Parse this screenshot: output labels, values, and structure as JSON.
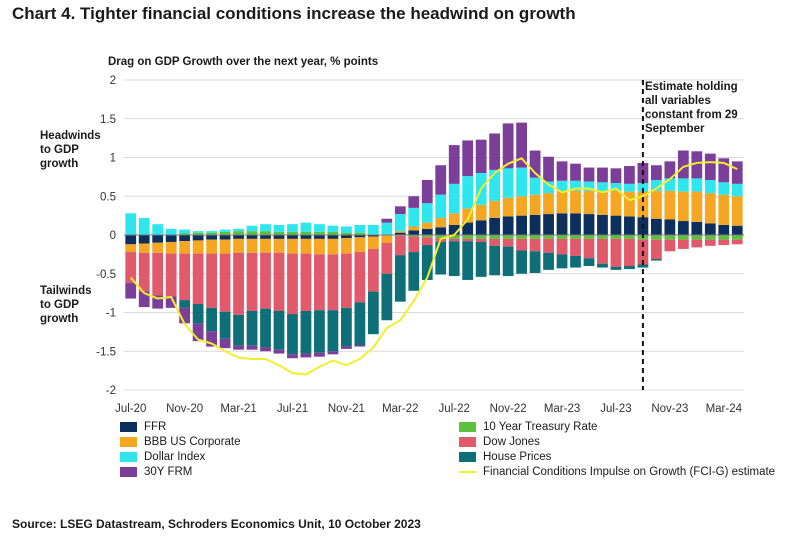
{
  "title": "Chart 4. Tighter financial conditions increase the headwind on growth",
  "subtitle": "Drag on GDP Growth over the next year, % points",
  "headwinds_label": "Headwinds\nto GDP\ngrowth",
  "tailwinds_label": "Tailwinds\nto GDP\ngrowth",
  "annotation": "Estimate holding\nall variables\nconstant from 29\nSeptember",
  "source": "Source: LSEG Datastream, Schroders Economics Unit, 10 October 2023",
  "colors": {
    "ffr": "#0d2f5e",
    "treasury": "#5cc13c",
    "bbb": "#f5a623",
    "dow": "#e05a6c",
    "dollar": "#2fe6ef",
    "house": "#0f6f78",
    "frm": "#7b3f9a",
    "fcig": "#f2ee2c"
  },
  "legend": [
    {
      "key": "ffr",
      "label": "FFR",
      "kind": "box"
    },
    {
      "key": "treasury",
      "label": "10 Year Treasury Rate",
      "kind": "box"
    },
    {
      "key": "bbb",
      "label": "BBB US Corporate",
      "kind": "box"
    },
    {
      "key": "dow",
      "label": "Dow Jones",
      "kind": "box"
    },
    {
      "key": "dollar",
      "label": "Dollar Index",
      "kind": "box"
    },
    {
      "key": "house",
      "label": "House Prices",
      "kind": "box"
    },
    {
      "key": "frm",
      "label": "30Y FRM",
      "kind": "box"
    },
    {
      "key": "fcig",
      "label": "Financial Conditions Impulse on Growth (FCI-G) estimate",
      "kind": "line"
    }
  ],
  "chart_data": {
    "type": "bar",
    "stacked": true,
    "title": "Chart 4. Tighter financial conditions increase the headwind on growth",
    "ylabel": "Drag on GDP Growth over the next year, % points",
    "ylim": [
      -2,
      2
    ],
    "yticks": [
      -2,
      -1.5,
      -1,
      -0.5,
      0,
      0.5,
      1,
      1.5,
      2
    ],
    "ytick_labels": [
      "-2",
      "-1.5",
      "-1",
      "-0.5",
      "0",
      "0.5",
      "1",
      "1.5",
      "2"
    ],
    "xtick_labels": [
      {
        "index": 0,
        "label": "Jul-20"
      },
      {
        "index": 4,
        "label": "Nov-20"
      },
      {
        "index": 8,
        "label": "Mar-21"
      },
      {
        "index": 12,
        "label": "Jul-21"
      },
      {
        "index": 16,
        "label": "Nov-21"
      },
      {
        "index": 20,
        "label": "Mar-22"
      },
      {
        "index": 24,
        "label": "Jul-22"
      },
      {
        "index": 28,
        "label": "Nov-22"
      },
      {
        "index": 32,
        "label": "Mar-23"
      },
      {
        "index": 36,
        "label": "Jul-23"
      },
      {
        "index": 40,
        "label": "Nov-23"
      },
      {
        "index": 44,
        "label": "Mar-24"
      }
    ],
    "estimate_start_index": 38.5,
    "categories": [
      "Jul-20",
      "Aug-20",
      "Sep-20",
      "Oct-20",
      "Nov-20",
      "Dec-20",
      "Jan-21",
      "Feb-21",
      "Mar-21",
      "Apr-21",
      "May-21",
      "Jun-21",
      "Jul-21",
      "Aug-21",
      "Sep-21",
      "Oct-21",
      "Nov-21",
      "Dec-21",
      "Jan-22",
      "Feb-22",
      "Mar-22",
      "Apr-22",
      "May-22",
      "Jun-22",
      "Jul-22",
      "Aug-22",
      "Sep-22",
      "Oct-22",
      "Nov-22",
      "Dec-22",
      "Jan-23",
      "Feb-23",
      "Mar-23",
      "Apr-23",
      "May-23",
      "Jun-23",
      "Jul-23",
      "Aug-23",
      "Sep-23",
      "Oct-23",
      "Nov-23",
      "Dec-23",
      "Jan-24",
      "Feb-24",
      "Mar-24",
      "Apr-24"
    ],
    "series": [
      {
        "key": "ffr",
        "name": "FFR",
        "values": [
          -0.12,
          -0.11,
          -0.1,
          -0.09,
          -0.08,
          -0.07,
          -0.06,
          -0.06,
          -0.05,
          -0.05,
          -0.05,
          -0.05,
          -0.05,
          -0.05,
          -0.05,
          -0.05,
          -0.04,
          -0.03,
          -0.02,
          0.0,
          0.03,
          0.06,
          0.08,
          0.1,
          0.13,
          0.16,
          0.19,
          0.22,
          0.24,
          0.25,
          0.26,
          0.27,
          0.28,
          0.28,
          0.27,
          0.26,
          0.25,
          0.24,
          0.23,
          0.21,
          0.2,
          0.18,
          0.17,
          0.15,
          0.13,
          0.12
        ]
      },
      {
        "key": "treasury",
        "name": "10 Year Treasury Rate",
        "values": [
          0.0,
          0.0,
          0.0,
          0.0,
          0.02,
          0.03,
          0.03,
          0.04,
          0.05,
          0.05,
          0.05,
          0.04,
          0.04,
          0.04,
          0.04,
          0.04,
          0.03,
          0.03,
          0.01,
          0.0,
          -0.01,
          -0.02,
          -0.03,
          -0.04,
          -0.05,
          -0.05,
          -0.05,
          -0.05,
          -0.05,
          -0.05,
          -0.05,
          -0.05,
          -0.05,
          -0.05,
          -0.05,
          -0.05,
          -0.05,
          -0.05,
          -0.06,
          -0.06,
          -0.06,
          -0.06,
          -0.06,
          -0.06,
          -0.06,
          -0.06
        ]
      },
      {
        "key": "bbb",
        "name": "BBB US Corporate",
        "values": [
          -0.1,
          -0.12,
          -0.13,
          -0.15,
          -0.16,
          -0.17,
          -0.18,
          -0.18,
          -0.18,
          -0.18,
          -0.18,
          -0.18,
          -0.19,
          -0.19,
          -0.2,
          -0.2,
          -0.2,
          -0.19,
          -0.16,
          -0.1,
          0.02,
          0.05,
          0.08,
          0.12,
          0.15,
          0.18,
          0.2,
          0.22,
          0.24,
          0.25,
          0.26,
          0.27,
          0.28,
          0.29,
          0.3,
          0.3,
          0.32,
          0.32,
          0.33,
          0.36,
          0.37,
          0.38,
          0.39,
          0.39,
          0.39,
          0.38
        ]
      },
      {
        "key": "dow",
        "name": "Dow Jones",
        "values": [
          -0.4,
          -0.5,
          -0.55,
          -0.55,
          -0.6,
          -0.65,
          -0.7,
          -0.75,
          -0.8,
          -0.75,
          -0.72,
          -0.75,
          -0.78,
          -0.74,
          -0.72,
          -0.72,
          -0.7,
          -0.65,
          -0.55,
          -0.4,
          -0.25,
          -0.2,
          -0.1,
          -0.05,
          -0.03,
          -0.03,
          -0.04,
          -0.09,
          -0.1,
          -0.15,
          -0.16,
          -0.18,
          -0.2,
          -0.22,
          -0.25,
          -0.32,
          -0.36,
          -0.35,
          -0.32,
          -0.25,
          -0.15,
          -0.12,
          -0.1,
          -0.08,
          -0.07,
          -0.06
        ]
      },
      {
        "key": "dollar",
        "name": "Dollar Index",
        "values": [
          0.28,
          0.22,
          0.14,
          0.08,
          0.05,
          0.02,
          0.02,
          0.03,
          0.03,
          0.07,
          0.09,
          0.09,
          0.1,
          0.12,
          0.1,
          0.08,
          0.08,
          0.1,
          0.12,
          0.16,
          0.22,
          0.24,
          0.25,
          0.3,
          0.38,
          0.42,
          0.41,
          0.4,
          0.38,
          0.37,
          0.22,
          0.15,
          0.14,
          0.13,
          0.12,
          0.12,
          0.1,
          0.1,
          0.11,
          0.14,
          0.16,
          0.17,
          0.17,
          0.17,
          0.16,
          0.16
        ]
      },
      {
        "key": "house",
        "name": "House Prices",
        "values": [
          0.0,
          0.0,
          0.0,
          0.0,
          -0.1,
          -0.25,
          -0.3,
          -0.35,
          -0.4,
          -0.45,
          -0.5,
          -0.5,
          -0.52,
          -0.55,
          -0.55,
          -0.53,
          -0.5,
          -0.55,
          -0.55,
          -0.6,
          -0.6,
          -0.5,
          -0.45,
          -0.42,
          -0.45,
          -0.5,
          -0.45,
          -0.38,
          -0.38,
          -0.3,
          -0.28,
          -0.22,
          -0.18,
          -0.15,
          -0.1,
          -0.05,
          -0.04,
          -0.04,
          -0.04,
          -0.02,
          0.0,
          0.0,
          0.0,
          0.0,
          0.0,
          0.0
        ]
      },
      {
        "key": "frm",
        "name": "30Y FRM",
        "values": [
          -0.2,
          -0.2,
          -0.17,
          -0.15,
          -0.2,
          -0.23,
          -0.2,
          -0.12,
          -0.05,
          -0.05,
          -0.05,
          -0.05,
          -0.05,
          -0.05,
          -0.05,
          -0.04,
          -0.03,
          -0.02,
          0.0,
          0.05,
          0.1,
          0.15,
          0.3,
          0.38,
          0.5,
          0.46,
          0.43,
          0.47,
          0.58,
          0.58,
          0.35,
          0.32,
          0.25,
          0.22,
          0.18,
          0.19,
          0.19,
          0.23,
          0.26,
          0.19,
          0.22,
          0.36,
          0.35,
          0.34,
          0.31,
          0.29
        ]
      },
      {
        "key": "fcig",
        "name": "Financial Conditions Impulse on Growth (FCI-G) estimate",
        "type": "line",
        "values": [
          -0.55,
          -0.75,
          -0.82,
          -0.8,
          -1.15,
          -1.35,
          -1.4,
          -1.5,
          -1.58,
          -1.6,
          -1.6,
          -1.68,
          -1.78,
          -1.8,
          -1.7,
          -1.62,
          -1.68,
          -1.6,
          -1.45,
          -1.2,
          -1.1,
          -0.85,
          -0.55,
          -0.05,
          0.0,
          0.2,
          0.6,
          0.8,
          0.92,
          0.99,
          0.8,
          0.65,
          0.55,
          0.6,
          0.6,
          0.55,
          0.6,
          0.45,
          0.5,
          0.6,
          0.72,
          0.88,
          0.93,
          0.94,
          0.93,
          0.85
        ]
      }
    ]
  }
}
